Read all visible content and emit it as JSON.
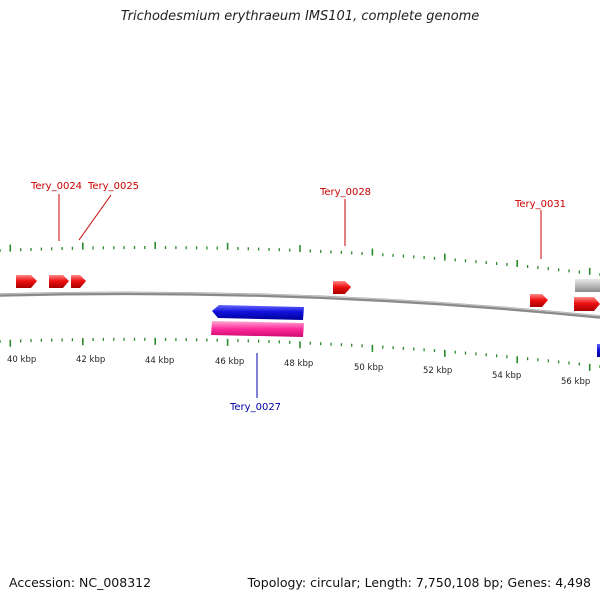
{
  "title": "Trichodesmium erythraeum IMS101, complete genome",
  "footer": {
    "accession": "Accession: NC_008312",
    "stats": "Topology: circular; Length: 7,750,108 bp; Genes: 4,498"
  },
  "colors": {
    "backbone": "#8a8a8a",
    "tick": "#2a8a2a",
    "forward_gene": "#ee1111",
    "reverse_gene": "#1111dd",
    "rrna": "#ff2a9a",
    "other_feature": "#bbbbbb",
    "label_forward": "#cc0000",
    "label_reverse": "#0000aa"
  },
  "scale_labels": [
    "40 kbp",
    "42 kbp",
    "44 kbp",
    "46 kbp",
    "48 kbp",
    "50 kbp",
    "52 kbp",
    "54 kbp",
    "56 kbp"
  ],
  "gene_labels": [
    {
      "name": "Tery_0024",
      "strand": "forward"
    },
    {
      "name": "Tery_0025",
      "strand": "forward"
    },
    {
      "name": "Tery_0028",
      "strand": "forward"
    },
    {
      "name": "Tery_0031",
      "strand": "forward"
    },
    {
      "name": "Tery_0027",
      "strand": "reverse"
    }
  ]
}
